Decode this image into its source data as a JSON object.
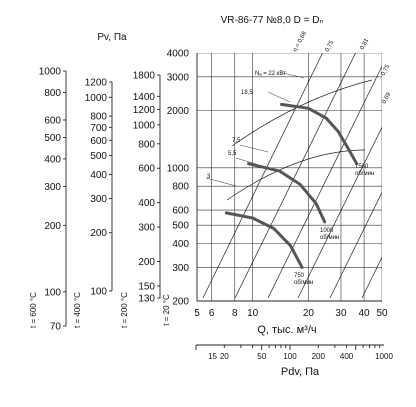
{
  "chart_data": {
    "type": "line",
    "title": "VR-86-77 №8,0 D = Dₙ",
    "xlabel": "Q, тыс. м³/ч",
    "ylabel": "Pv, Па",
    "x_scale": "log",
    "y_scale": "log",
    "xlim": [
      5,
      50
    ],
    "ylim": [
      200,
      4000
    ],
    "x_ticks": [
      5,
      6,
      8,
      10,
      20,
      30,
      40,
      50
    ],
    "y_ticks": [
      200,
      300,
      400,
      500,
      600,
      800,
      1000,
      2000,
      3000,
      4000
    ],
    "temperature_scales": [
      {
        "label": "t = 600 °C",
        "ticks": [
          70,
          100,
          200,
          300,
          400,
          500,
          600,
          800,
          1000
        ]
      },
      {
        "label": "t = 400 °C",
        "ticks": [
          100,
          200,
          300,
          400,
          500,
          600,
          700,
          800,
          1000,
          1200
        ]
      },
      {
        "label": "t = 200 °C",
        "ticks": [
          130,
          150,
          200,
          300,
          400,
          600,
          800,
          1000,
          1200,
          1400,
          1800
        ]
      },
      {
        "label": "t = 20 °C",
        "ticks": []
      }
    ],
    "dynamic_pressure_axis": {
      "label": "Pdv, Па",
      "ticks": [
        15,
        20,
        50,
        100,
        200,
        400,
        1000
      ]
    },
    "series": [
      {
        "name": "750 об/мин",
        "x": [
          7.2,
          10,
          13,
          16,
          18.5
        ],
        "y": [
          580,
          545,
          480,
          390,
          300
        ]
      },
      {
        "name": "1000 об/мин",
        "x": [
          9.5,
          14,
          18,
          22,
          24.5
        ],
        "y": [
          1050,
          960,
          820,
          650,
          520
        ]
      },
      {
        "name": "1500 об/мин",
        "x": [
          14.3,
          20,
          25,
          29,
          33,
          36.5
        ],
        "y": [
          2150,
          2050,
          1820,
          1550,
          1250,
          1050
        ]
      }
    ],
    "efficiency_labels": [
      "η = 0,68",
      "0,75",
      "0,81",
      "0,75",
      "0,69"
    ],
    "power_labels": [
      "Nₐ = 22 кВт",
      "18,5",
      "7,5",
      "5,5",
      "3"
    ],
    "grid": true
  }
}
